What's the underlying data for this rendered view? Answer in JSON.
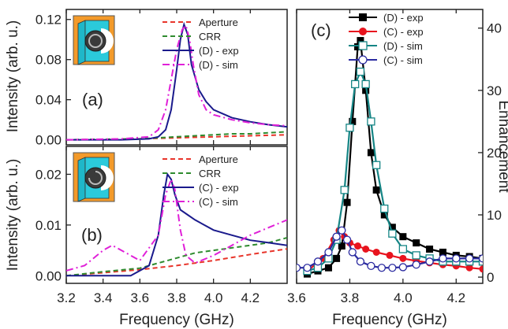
{
  "chart_data": [
    {
      "panel": "(a)",
      "type": "line",
      "xlabel": "Frequency (GHz)",
      "ylabel": "Intensity (arb. u.)",
      "xlim": [
        3.2,
        4.4
      ],
      "ylim": [
        -0.005,
        0.13
      ],
      "xticks": [
        "3.2",
        "3.4",
        "3.6",
        "3.8",
        "4.0",
        "4.2"
      ],
      "yticks": [
        "0.00",
        "0.04",
        "0.08",
        "0.12"
      ],
      "legend_position": "top-right",
      "series": [
        {
          "name": "Aperture",
          "color": "#e8352b",
          "dash": "dashed",
          "x": [
            3.2,
            3.4,
            3.6,
            3.8,
            4.0,
            4.2,
            4.4
          ],
          "y": [
            0.0,
            0.0005,
            0.001,
            0.002,
            0.003,
            0.004,
            0.005
          ]
        },
        {
          "name": "CRR",
          "color": "#2e8b2e",
          "dash": "dashed",
          "x": [
            3.2,
            3.4,
            3.6,
            3.7,
            3.8,
            3.9,
            4.0,
            4.1,
            4.2,
            4.3,
            4.4
          ],
          "y": [
            0.0,
            0.0005,
            0.001,
            0.002,
            0.003,
            0.004,
            0.005,
            0.006,
            0.006,
            0.007,
            0.008
          ]
        },
        {
          "name": "(D) - exp",
          "color": "#1a1a8c",
          "dash": "solid",
          "x": [
            3.2,
            3.5,
            3.65,
            3.7,
            3.74,
            3.77,
            3.8,
            3.82,
            3.84,
            3.86,
            3.88,
            3.92,
            3.96,
            4.0,
            4.1,
            4.2,
            4.3,
            4.4
          ],
          "y": [
            0.0,
            0.0,
            0.001,
            0.003,
            0.01,
            0.03,
            0.07,
            0.1,
            0.115,
            0.105,
            0.075,
            0.05,
            0.038,
            0.03,
            0.022,
            0.018,
            0.015,
            0.013
          ]
        },
        {
          "name": "(D) - sim",
          "color": "#e020d8",
          "dash": "dashdot",
          "x": [
            3.2,
            3.5,
            3.65,
            3.7,
            3.74,
            3.77,
            3.8,
            3.83,
            3.85,
            3.87,
            3.89,
            3.92,
            3.96,
            4.0,
            4.1,
            4.2,
            4.3,
            4.4
          ],
          "y": [
            0.0,
            0.001,
            0.003,
            0.01,
            0.03,
            0.06,
            0.09,
            0.11,
            0.114,
            0.1,
            0.075,
            0.045,
            0.03,
            0.025,
            0.02,
            0.017,
            0.015,
            0.014
          ]
        }
      ]
    },
    {
      "panel": "(b)",
      "type": "line",
      "xlabel": "Frequency (GHz)",
      "ylabel": "Intensity (arb. u.)",
      "xlim": [
        3.2,
        4.4
      ],
      "ylim": [
        -0.0015,
        0.0255
      ],
      "xticks": [
        "3.2",
        "3.4",
        "3.6",
        "3.8",
        "4.0",
        "4.2"
      ],
      "yticks": [
        "0.00",
        "0.01",
        "0.02"
      ],
      "legend_position": "top-right",
      "series": [
        {
          "name": "Aperture",
          "color": "#e8352b",
          "dash": "dashed",
          "x": [
            3.2,
            3.4,
            3.6,
            3.8,
            4.0,
            4.2,
            4.4
          ],
          "y": [
            0.0,
            0.0006,
            0.0012,
            0.002,
            0.003,
            0.0042,
            0.0053
          ]
        },
        {
          "name": "CRR",
          "color": "#2e8b2e",
          "dash": "dashed",
          "x": [
            3.2,
            3.4,
            3.6,
            3.7,
            3.8,
            3.9,
            4.0,
            4.1,
            4.2,
            4.3,
            4.35,
            4.4
          ],
          "y": [
            0.0,
            0.0008,
            0.0015,
            0.0025,
            0.0035,
            0.0045,
            0.005,
            0.0055,
            0.006,
            0.0065,
            0.007,
            0.0075
          ]
        },
        {
          "name": "(C) - exp",
          "color": "#1a1a8c",
          "dash": "solid",
          "x": [
            3.2,
            3.55,
            3.65,
            3.7,
            3.73,
            3.75,
            3.77,
            3.79,
            3.82,
            3.86,
            3.9,
            4.0,
            4.1,
            4.2,
            4.3,
            4.4
          ],
          "y": [
            0.0,
            0.0,
            0.002,
            0.008,
            0.016,
            0.02,
            0.019,
            0.016,
            0.013,
            0.012,
            0.011,
            0.009,
            0.008,
            0.007,
            0.0065,
            0.006
          ]
        },
        {
          "name": "(C) - sim",
          "color": "#e020d8",
          "dash": "dashdot",
          "x": [
            3.2,
            3.3,
            3.4,
            3.45,
            3.5,
            3.6,
            3.7,
            3.74,
            3.77,
            3.79,
            3.82,
            3.85,
            3.9,
            4.0,
            4.1,
            4.2,
            4.3,
            4.4
          ],
          "y": [
            0.001,
            0.002,
            0.005,
            0.006,
            0.005,
            0.003,
            0.008,
            0.016,
            0.019,
            0.017,
            0.009,
            0.004,
            0.0025,
            0.004,
            0.006,
            0.008,
            0.0095,
            0.011
          ]
        }
      ]
    },
    {
      "panel": "(c)",
      "type": "line",
      "xlabel": "Frequency (GHz)",
      "ylabel": "Enhancement",
      "xlim": [
        3.6,
        4.3
      ],
      "ylim": [
        -1,
        43
      ],
      "xticks": [
        "3.6",
        "3.8",
        "4.0",
        "4.2"
      ],
      "yticks": [
        "0",
        "10",
        "20",
        "30",
        "40"
      ],
      "legend_position": "top-right",
      "series": [
        {
          "name": "(D) - exp",
          "color": "#000000",
          "marker": "filled-square",
          "x": [
            3.64,
            3.68,
            3.72,
            3.75,
            3.77,
            3.79,
            3.81,
            3.83,
            3.84,
            3.86,
            3.88,
            3.9,
            3.93,
            3.96,
            4.0,
            4.05,
            4.1,
            4.15,
            4.2,
            4.25,
            4.3
          ],
          "y": [
            0.5,
            1,
            1.5,
            3,
            5,
            12,
            25,
            37,
            38,
            30,
            20,
            14,
            10,
            8,
            6.5,
            5.5,
            4.5,
            4,
            3.5,
            3.3,
            3
          ]
        },
        {
          "name": "(C) - exp",
          "color": "#e8141e",
          "marker": "filled-circle",
          "x": [
            3.64,
            3.7,
            3.74,
            3.76,
            3.78,
            3.8,
            3.83,
            3.86,
            3.9,
            3.95,
            4.0,
            4.05,
            4.1,
            4.15,
            4.2,
            4.25,
            4.3
          ],
          "y": [
            1,
            3,
            6,
            7.5,
            6.5,
            5.5,
            5,
            4.5,
            4,
            3.5,
            3,
            2.6,
            2.3,
            2,
            1.8,
            1.5,
            1.3
          ]
        },
        {
          "name": "(D) - sim",
          "color": "#158585",
          "marker": "open-square",
          "x": [
            3.64,
            3.68,
            3.72,
            3.75,
            3.78,
            3.8,
            3.82,
            3.84,
            3.86,
            3.88,
            3.9,
            3.93,
            3.96,
            4.0,
            4.05,
            4.1,
            4.15,
            4.2,
            4.25,
            4.3
          ],
          "y": [
            1,
            1.5,
            3,
            6,
            14,
            24,
            31,
            33,
            31,
            25,
            18,
            11,
            7,
            4.5,
            3.5,
            3,
            2.5,
            2.5,
            2.5,
            2.5
          ]
        },
        {
          "name": "(C) - sim",
          "color": "#2a2aa0",
          "marker": "open-circle",
          "x": [
            3.6,
            3.64,
            3.68,
            3.72,
            3.75,
            3.77,
            3.79,
            3.81,
            3.84,
            3.88,
            3.92,
            3.96,
            4.0,
            4.05,
            4.1,
            4.15,
            4.2,
            4.25,
            4.3
          ],
          "y": [
            1.5,
            1.5,
            2.5,
            4,
            6.5,
            7.5,
            6,
            4,
            2.5,
            1.8,
            1.5,
            1.5,
            1.6,
            2,
            2.5,
            3,
            3,
            3,
            3
          ]
        }
      ]
    }
  ]
}
